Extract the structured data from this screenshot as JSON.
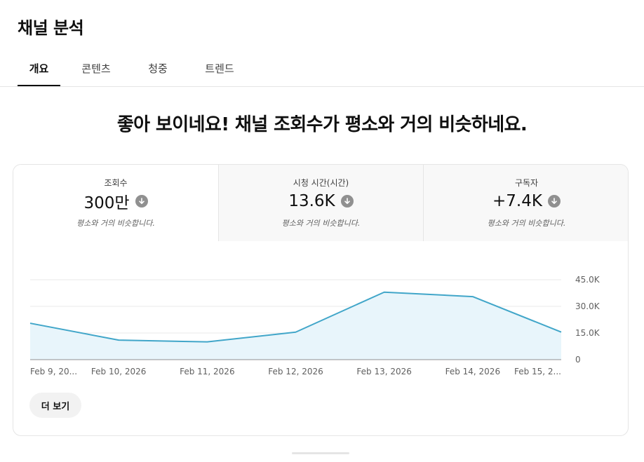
{
  "page": {
    "title": "채널 분석",
    "tabs": [
      {
        "label": "개요",
        "active": true
      },
      {
        "label": "콘텐츠",
        "active": false
      },
      {
        "label": "청중",
        "active": false
      },
      {
        "label": "트렌드",
        "active": false
      }
    ],
    "headline": "좋아 보이네요! 채널 조회수가 평소와 거의 비슷하네요."
  },
  "metrics": [
    {
      "label": "조회수",
      "value": "300만",
      "note": "평소와 거의 비슷합니다.",
      "selected": true
    },
    {
      "label": "시청 시간(시간)",
      "value": "13.6K",
      "note": "평소와 거의 비슷합니다.",
      "selected": false
    },
    {
      "label": "구독자",
      "value": "+7.4K",
      "note": "평소와 거의 비슷합니다.",
      "selected": false
    }
  ],
  "more_button": {
    "label": "더 보기"
  },
  "colors": {
    "accent_line": "#41a6c9",
    "accent_fill": "#e8f5fb",
    "grid": "#e9e9e9",
    "icon_gray": "#909090"
  },
  "chart_data": {
    "type": "area",
    "x": [
      "Feb 9, 20...",
      "Feb 10, 2026",
      "Feb 11, 2026",
      "Feb 12, 2026",
      "Feb 13, 2026",
      "Feb 14, 2026",
      "Feb 15, 2..."
    ],
    "series": [
      {
        "values": [
          20500,
          11000,
          10000,
          15500,
          38000,
          35500,
          15500
        ]
      }
    ],
    "y_ticks": [
      "0",
      "15.0K",
      "30.0K",
      "45.0K"
    ],
    "y_tick_values": [
      0,
      15000,
      30000,
      45000
    ],
    "ylim": [
      0,
      45000
    ],
    "grid": true,
    "y_axis_side": "right"
  }
}
